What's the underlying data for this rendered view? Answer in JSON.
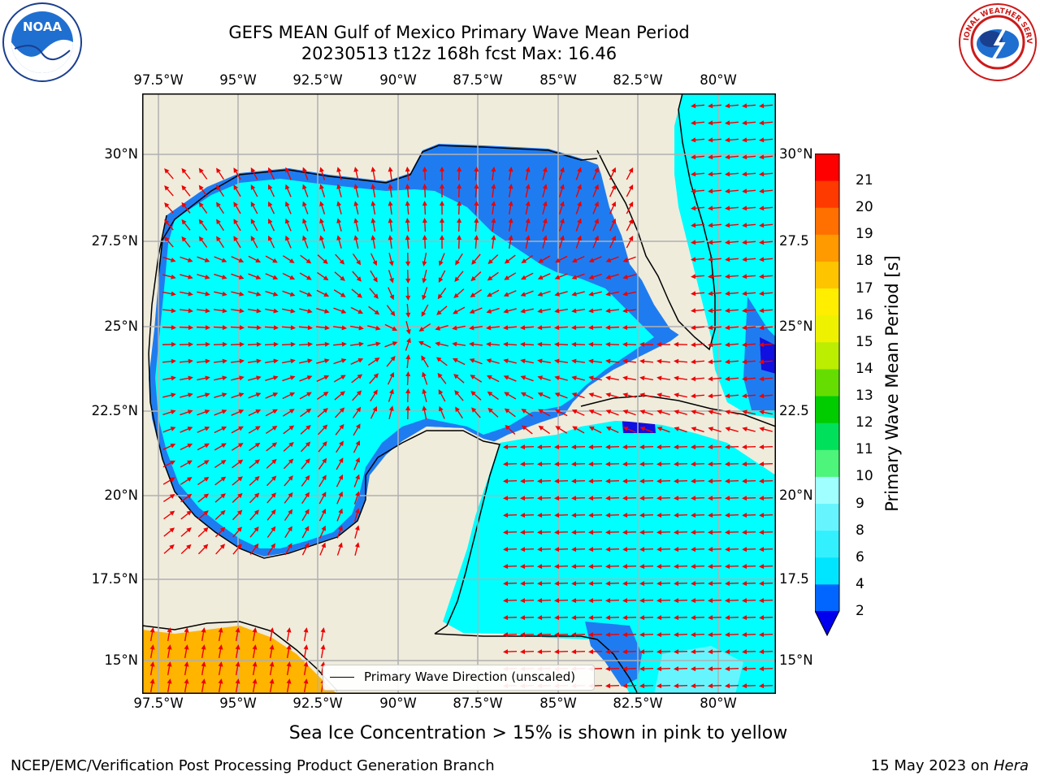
{
  "title_line1": "GEFS MEAN Gulf of Mexico Primary Wave Mean Period",
  "title_line2": "20230513 t12z 168h fcst   Max: 16.46",
  "longitude_labels": [
    "97.5°W",
    "95°W",
    "92.5°W",
    "90°W",
    "87.5°W",
    "85°W",
    "82.5°W",
    "80°W"
  ],
  "latitude_labels_left": [
    "30°N",
    "27.5°N",
    "25°N",
    "22.5°N",
    "20°N",
    "17.5°N",
    "15°N"
  ],
  "latitude_labels_right": [
    "30°N",
    "27.5",
    "25°N",
    "22.5",
    "20°N",
    "17.5",
    "15°N"
  ],
  "colorbar": {
    "label": "Primary Wave Mean Period [s]",
    "ticks": [
      "2",
      "4",
      "6",
      "8",
      "9",
      "10",
      "11",
      "12",
      "13",
      "14",
      "15",
      "16",
      "17",
      "18",
      "19",
      "20",
      "21"
    ],
    "colors": [
      "#0066ff",
      "#00e5ff",
      "#33f0ff",
      "#66f5ff",
      "#a0ffff",
      "#4df57a",
      "#00e05a",
      "#00cc00",
      "#66dd00",
      "#bbee00",
      "#eef200",
      "#ffee00",
      "#ffc400",
      "#ff9a00",
      "#ff7000",
      "#ff3a00",
      "#ff0000"
    ],
    "under_color": "#0000ee"
  },
  "map_colors": {
    "land": "#efecdc",
    "sea_low": "#00ffff",
    "sea_mid": "#33ccff",
    "sea_deep": "#1f7cf0",
    "sea_dark": "#1010e0",
    "pacific": "#ffb400",
    "arrow": "#ee0000",
    "grid": "#b0b0b0"
  },
  "legend_label": "Primary Wave Direction (unscaled)",
  "subtitle": "Sea Ice Concentration > 15% is shown in pink to yellow",
  "footer_left": "NCEP/EMC/Verification Post Processing Product Generation Branch",
  "footer_date": "15 May 2023 on ",
  "footer_machine": "Hera",
  "noaa_logo_text": "NOAA",
  "nws_logo_text": "NATIONAL WEATHER SERVICE"
}
